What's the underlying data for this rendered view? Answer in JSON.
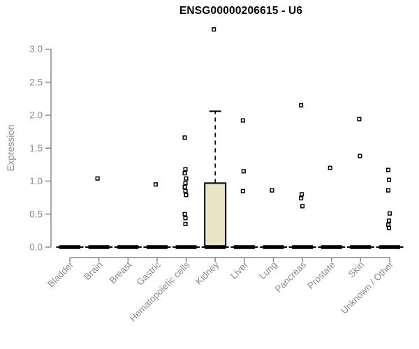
{
  "chart_data": {
    "type": "boxplot",
    "title": "ENSG00000206615 - U6",
    "ylabel": "Expression",
    "xlabel": "",
    "yticks": [
      "0.0",
      "0.5",
      "1.0",
      "1.5",
      "2.0",
      "2.5",
      "3.0"
    ],
    "ytick_values": [
      0,
      0.5,
      1.0,
      1.5,
      2.0,
      2.5,
      3.0
    ],
    "ylim": [
      0,
      3.35
    ],
    "grid": false,
    "legend": "none",
    "colors": {
      "box_fill": "#EAE4C7",
      "box_border": "#000000",
      "median": "#000000",
      "axis": "#8a8a8a",
      "tick_label": "#8a8a8a",
      "title": "#000000",
      "point_stroke": "#000000",
      "point_fill": "#ffffff"
    },
    "categories": [
      "Bladder",
      "Brain",
      "Breast",
      "Gastric",
      "Hematopoietic cells",
      "Kidney",
      "Liver",
      "Lung",
      "Pancreas",
      "Prostate",
      "Skin",
      "Unknown / Other"
    ],
    "series": [
      {
        "category": "Bladder",
        "box": {
          "whisker_low": 0,
          "q1": 0,
          "median": 0,
          "q3": 0,
          "whisker_high": 0
        },
        "points": []
      },
      {
        "category": "Brain",
        "box": {
          "whisker_low": 0,
          "q1": 0,
          "median": 0,
          "q3": 0,
          "whisker_high": 0
        },
        "points": [
          1.04
        ]
      },
      {
        "category": "Breast",
        "box": {
          "whisker_low": 0,
          "q1": 0,
          "median": 0,
          "q3": 0,
          "whisker_high": 0
        },
        "points": []
      },
      {
        "category": "Gastric",
        "box": {
          "whisker_low": 0,
          "q1": 0,
          "median": 0,
          "q3": 0,
          "whisker_high": 0
        },
        "points": [
          0.95
        ]
      },
      {
        "category": "Hematopoietic cells",
        "box": {
          "whisker_low": 0,
          "q1": 0,
          "median": 0,
          "q3": 0,
          "whisker_high": 0
        },
        "points": [
          1.66,
          1.18,
          1.12,
          1.04,
          0.97,
          0.91,
          0.85,
          0.79,
          0.5,
          0.44,
          0.35
        ]
      },
      {
        "category": "Kidney",
        "box": {
          "whisker_low": 0,
          "q1": 0,
          "median": 0,
          "q3": 0.97,
          "whisker_high": 2.06
        },
        "points": [
          3.3
        ]
      },
      {
        "category": "Liver",
        "box": {
          "whisker_low": 0,
          "q1": 0,
          "median": 0,
          "q3": 0,
          "whisker_high": 0
        },
        "points": [
          1.92,
          1.15,
          0.85
        ]
      },
      {
        "category": "Lung",
        "box": {
          "whisker_low": 0,
          "q1": 0,
          "median": 0,
          "q3": 0,
          "whisker_high": 0
        },
        "points": [
          0.86
        ]
      },
      {
        "category": "Pancreas",
        "box": {
          "whisker_low": 0,
          "q1": 0,
          "median": 0,
          "q3": 0,
          "whisker_high": 0
        },
        "points": [
          2.15,
          0.8,
          0.74,
          0.62
        ]
      },
      {
        "category": "Prostate",
        "box": {
          "whisker_low": 0,
          "q1": 0,
          "median": 0,
          "q3": 0,
          "whisker_high": 0
        },
        "points": [
          1.2
        ]
      },
      {
        "category": "Skin",
        "box": {
          "whisker_low": 0,
          "q1": 0,
          "median": 0,
          "q3": 0,
          "whisker_high": 0
        },
        "points": [
          1.94,
          1.38
        ]
      },
      {
        "category": "Unknown / Other",
        "box": {
          "whisker_low": 0,
          "q1": 0,
          "median": 0,
          "q3": 0,
          "whisker_high": 0
        },
        "points": [
          1.17,
          1.02,
          0.86,
          0.51,
          0.4,
          0.34,
          0.29
        ]
      }
    ]
  }
}
